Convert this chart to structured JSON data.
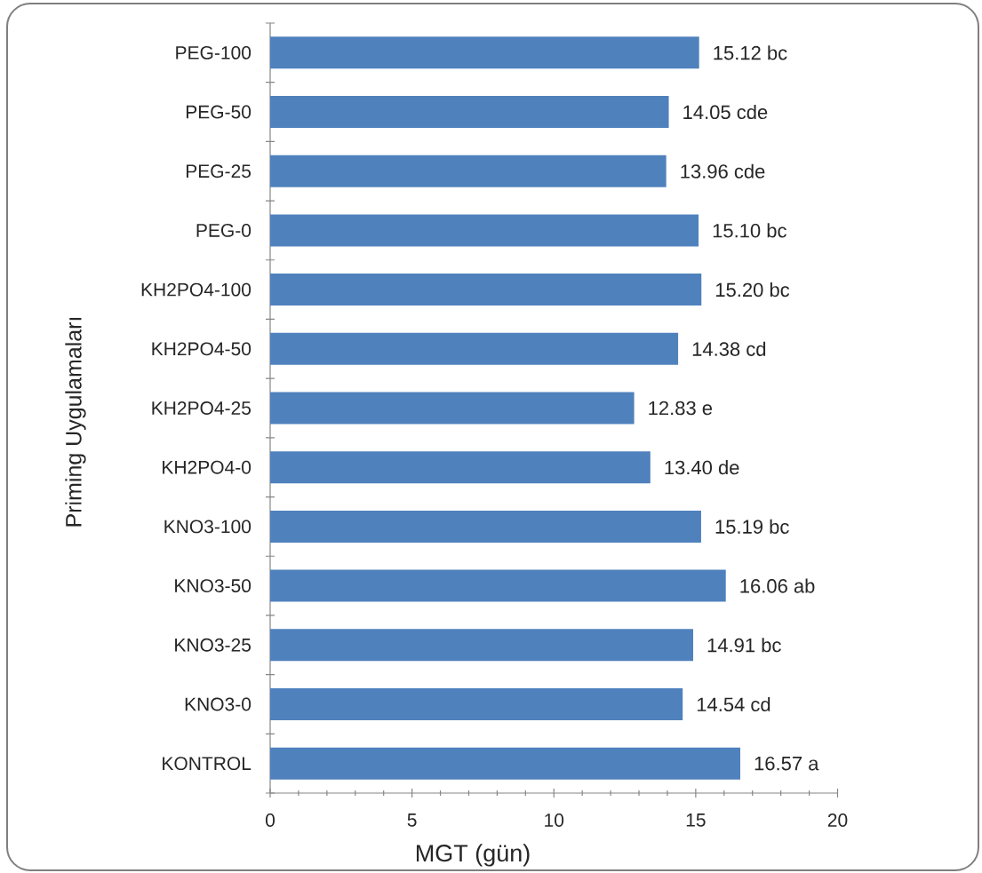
{
  "chart_data": {
    "type": "bar",
    "orientation": "horizontal",
    "xlabel": "MGT (gün)",
    "ylabel": "Priming Uygulamaları",
    "categories": [
      "PEG-100",
      "PEG-50",
      "PEG-25",
      "PEG-0",
      "KH2PO4-100",
      "KH2PO4-50",
      "KH2PO4-25",
      "KH2PO4-0",
      "KNO3-100",
      "KNO3-50",
      "KNO3-25",
      "KNO3-0",
      "KONTROL"
    ],
    "values": [
      15.12,
      14.05,
      13.96,
      15.1,
      15.2,
      14.38,
      12.83,
      13.4,
      15.19,
      16.06,
      14.91,
      14.54,
      16.57
    ],
    "value_labels": [
      "15.12 bc",
      "14.05 cde",
      "13.96 cde",
      "15.10 bc",
      "15.20 bc",
      "14.38 cd",
      "12.83 e",
      "13.40 de",
      "15.19 bc",
      "16.06 ab",
      "14.91 bc",
      "14.54 cd",
      "16.57 a"
    ],
    "color": "#4f81bd",
    "xlim": [
      0,
      20
    ],
    "xticks": [
      0,
      5,
      10,
      15,
      20
    ]
  }
}
